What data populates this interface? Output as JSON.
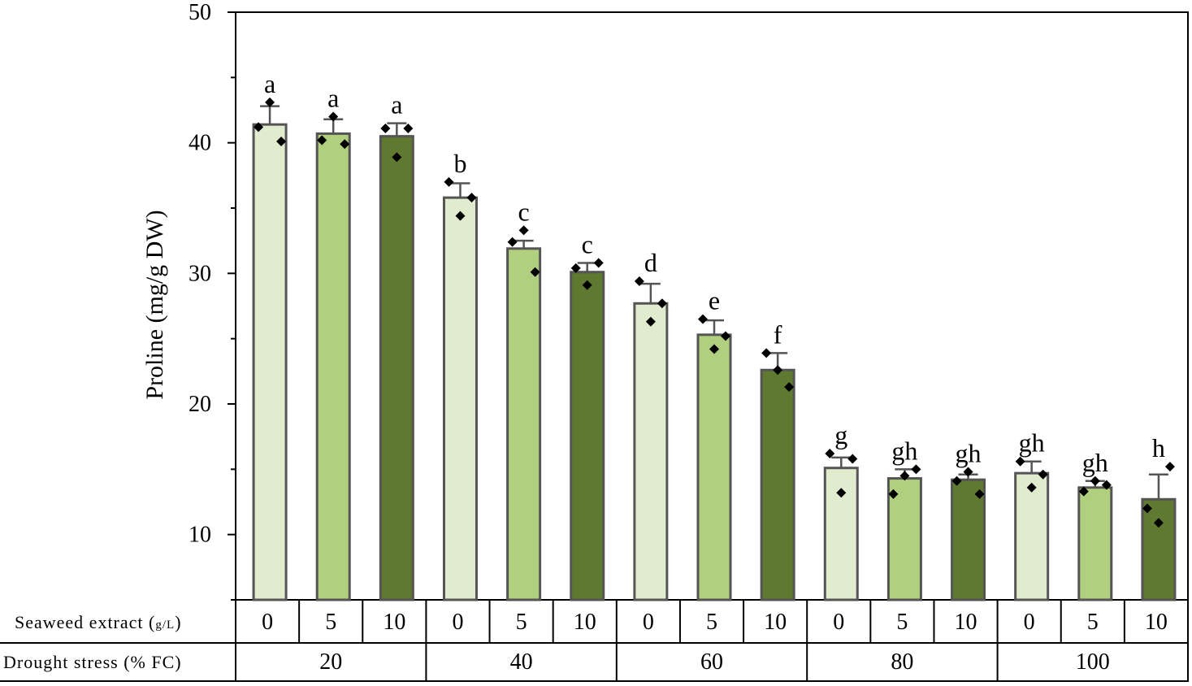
{
  "chart_data": {
    "type": "bar",
    "ylabel": "Proline (mg/g DW)",
    "ylim": [
      5,
      50
    ],
    "yticks": [
      10,
      20,
      30,
      40,
      50
    ],
    "grid": false,
    "row_labels": {
      "seaweed": "Seaweed extract (",
      "seaweed_unit": "g/L",
      "seaweed_close": ")",
      "drought": "Drought stress (% FC)"
    },
    "groups": [
      "20",
      "40",
      "60",
      "80",
      "100"
    ],
    "seaweed_levels": [
      "0",
      "5",
      "10"
    ],
    "series_colors": [
      "#e1ebcd",
      "#b0d080",
      "#5f7a30"
    ],
    "values": [
      [
        41.4,
        40.7,
        40.5
      ],
      [
        35.8,
        31.9,
        30.1
      ],
      [
        27.7,
        25.3,
        22.6
      ],
      [
        15.1,
        14.3,
        14.2
      ],
      [
        14.7,
        13.6,
        12.7
      ]
    ],
    "errors": [
      [
        1.4,
        1.1,
        1.0
      ],
      [
        1.1,
        0.6,
        0.7
      ],
      [
        1.5,
        1.1,
        1.3
      ],
      [
        0.8,
        0.7,
        0.4
      ],
      [
        0.9,
        0.5,
        1.9
      ]
    ],
    "letters": [
      [
        "a",
        "a",
        "a"
      ],
      [
        "b",
        "c",
        "c"
      ],
      [
        "d",
        "e",
        "f"
      ],
      [
        "g",
        "gh",
        "gh"
      ],
      [
        "gh",
        "gh",
        "h"
      ]
    ],
    "points": [
      [
        [
          41.2,
          43.1,
          40.1
        ],
        [
          40.2,
          42.0,
          39.9
        ],
        [
          41.1,
          38.9,
          41.1
        ]
      ],
      [
        [
          37.0,
          34.4,
          35.8
        ],
        [
          32.4,
          33.3,
          30.1
        ],
        [
          30.4,
          29.1,
          30.8
        ]
      ],
      [
        [
          29.4,
          26.3,
          27.7
        ],
        [
          26.5,
          24.2,
          25.2
        ],
        [
          23.9,
          22.6,
          21.3
        ]
      ],
      [
        [
          16.2,
          13.2,
          15.8
        ],
        [
          13.1,
          14.5,
          15.0
        ],
        [
          14.1,
          14.8,
          13.1
        ]
      ],
      [
        [
          15.6,
          13.6,
          14.6
        ],
        [
          13.3,
          14.1,
          13.8
        ],
        [
          12.0,
          10.9,
          15.2
        ]
      ]
    ]
  }
}
